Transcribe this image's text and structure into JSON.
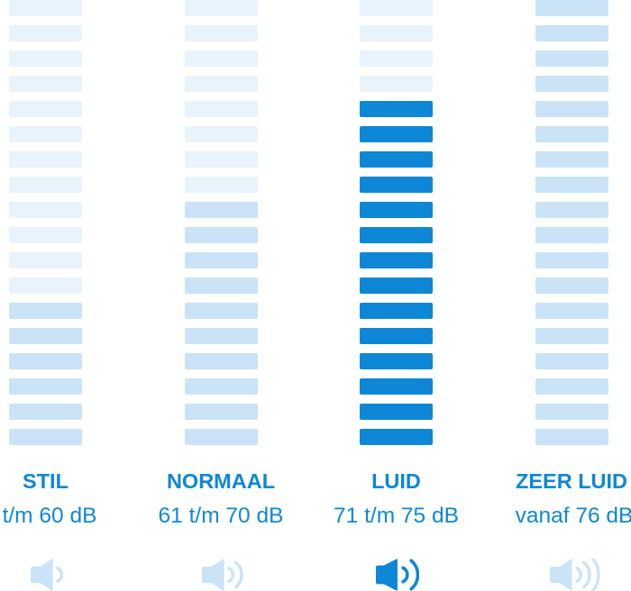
{
  "colors": {
    "background": "#ffffff",
    "brand_blue": "#0e87d7",
    "light_fill": "#cae3f6",
    "pale_segment": "#e9f3fb",
    "label_text": "#0e87d7"
  },
  "chart_data": {
    "type": "bar",
    "title": "",
    "subtitle": "",
    "xlabel": "",
    "ylabel": "",
    "legend": [],
    "grid": false,
    "layout": "four vertical segmented level meters, 18 segments each, labels and speaker icons below",
    "total_segments_per_column": 18,
    "categories": [
      "STIL",
      "NORMAAL",
      "LUID",
      "ZEER LUID"
    ],
    "series": [
      {
        "name": "STIL",
        "range_label": "t/m 60 dB",
        "filled_segments": 6,
        "highlighted": false,
        "speaker_waves": 1
      },
      {
        "name": "NORMAAL",
        "range_label": "61 t/m 70 dB",
        "filled_segments": 10,
        "highlighted": false,
        "speaker_waves": 2
      },
      {
        "name": "LUID",
        "range_label": "71 t/m 75 dB",
        "filled_segments": 14,
        "highlighted": true,
        "speaker_waves": 2
      },
      {
        "name": "ZEER LUID",
        "range_label": "vanaf 76 dB",
        "filled_segments": 18,
        "highlighted": false,
        "speaker_waves": 3
      }
    ]
  }
}
